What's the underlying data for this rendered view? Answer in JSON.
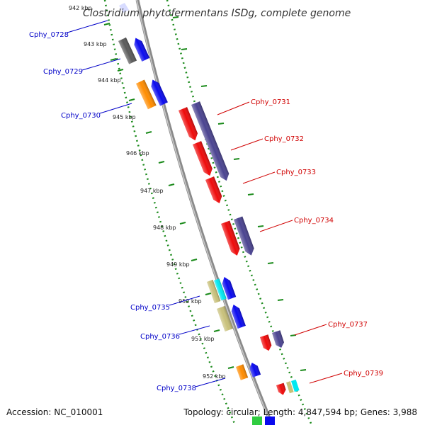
{
  "title": "Clostridium phytofermentans ISDg, complete genome",
  "footer": {
    "accession": "Accession: NC_010001",
    "summary": "Topology: circular; Length: 4,847,594 bp; Genes: 3,988"
  },
  "kbp_marks": [
    {
      "label": "942 kbp",
      "value": 942
    },
    {
      "label": "943 kbp",
      "value": 943
    },
    {
      "label": "944 kbp",
      "value": 944
    },
    {
      "label": "945 kbp",
      "value": 945
    },
    {
      "label": "946 kbp",
      "value": 946
    },
    {
      "label": "947 kbp",
      "value": 947
    },
    {
      "label": "948 kbp",
      "value": 948
    },
    {
      "label": "949 kbp",
      "value": 949
    },
    {
      "label": "950 kbp",
      "value": 950
    },
    {
      "label": "951 kbp",
      "value": 951
    },
    {
      "label": "952 kbp",
      "value": 952
    }
  ],
  "genes_left": [
    {
      "name": "Cphy_0728"
    },
    {
      "name": "Cphy_0729"
    },
    {
      "name": "Cphy_0730"
    },
    {
      "name": "Cphy_0735"
    },
    {
      "name": "Cphy_0736"
    },
    {
      "name": "Cphy_0738"
    }
  ],
  "genes_right": [
    {
      "name": "Cphy_0731"
    },
    {
      "name": "Cphy_0732"
    },
    {
      "name": "Cphy_0733"
    },
    {
      "name": "Cphy_0734"
    },
    {
      "name": "Cphy_0737"
    },
    {
      "name": "Cphy_0739"
    }
  ],
  "colors": {
    "backbone": "#8a8a8a",
    "dotted_track": "#1a8a1a",
    "left_label": "#0000c8",
    "right_label": "#d00000",
    "forward_blue": "#0a0aee",
    "forward_purple": "#4a4390",
    "reverse_red": "#ee0a0a",
    "dark_grey": "#5a5a5a",
    "orange": "#ff8c00",
    "khaki": "#c8c07a",
    "cyan": "#00e8f0",
    "green": "#30cc40"
  }
}
